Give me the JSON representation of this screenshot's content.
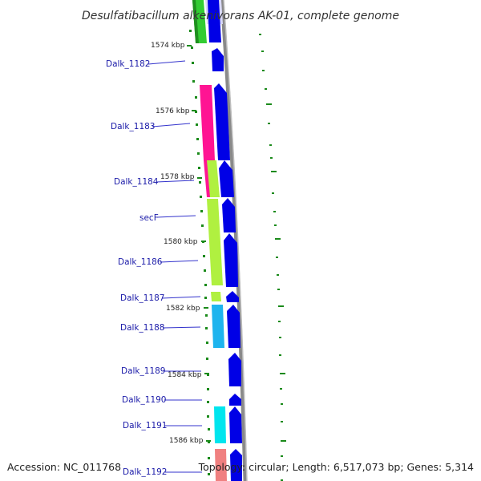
{
  "title": "Desulfatibacillum alkenivorans AK-01, complete genome",
  "footer": {
    "accession": "Accession: NC_011768",
    "topology": "Topology: circular; Length: 6,517,073 bp; Genes: 5,314"
  },
  "ticks": [
    "1574 kbp",
    "1576 kbp",
    "1578 kbp",
    "1580 kbp",
    "1582 kbp",
    "1584 kbp",
    "1586 kbp"
  ],
  "genes": [
    "Dalk_1182",
    "Dalk_1183",
    "Dalk_1184",
    "secF",
    "Dalk_1186",
    "Dalk_1187",
    "Dalk_1188",
    "Dalk_1189",
    "Dalk_1190",
    "Dalk_1191",
    "Dalk_1192"
  ],
  "colors": {
    "backbone": "#8a8a8a",
    "cds_forward": "#0000e6",
    "tick_marks": "#1a8a1a",
    "label": "#1a1aa8",
    "cog_green": "#33cc33",
    "cog_magenta": "#ff1493",
    "cog_lime": "#b0f040",
    "cog_sky": "#1eb4ee",
    "cog_cyan": "#00e5ee",
    "cog_salmon": "#f08080"
  }
}
